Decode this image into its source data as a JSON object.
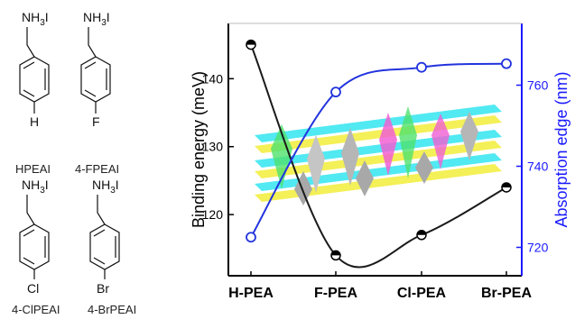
{
  "molecules": [
    {
      "top": "NH",
      "sub": "3",
      "tail": "I",
      "substituent": "H",
      "name": "HPEAI"
    },
    {
      "top": "NH",
      "sub": "3",
      "tail": "I",
      "substituent": "F",
      "name": "4-FPEAI"
    },
    {
      "top": "NH",
      "sub": "3",
      "tail": "I",
      "substituent": "Cl",
      "name": "4-ClPEAI"
    },
    {
      "top": "NH",
      "sub": "3",
      "tail": "I",
      "substituent": "Br",
      "name": "4-BrPEAI"
    }
  ],
  "chart_data": {
    "type": "line",
    "categories": [
      "H-PEA",
      "F-PEA",
      "Cl-PEA",
      "Br-PEA"
    ],
    "series": [
      {
        "axis": "left",
        "color": "#1a1a1a",
        "values": [
          145,
          114,
          117,
          124
        ]
      },
      {
        "axis": "right",
        "color": "#2233dd",
        "values": [
          722.5,
          758.3,
          764.4,
          765.3
        ]
      }
    ],
    "ylabel_left": "Binding energy (meV)",
    "ylabel_right": "Absorption edge (nm)",
    "ylim_left": [
      111,
      148
    ],
    "ylim_right": [
      713,
      775
    ],
    "yticks_left": [
      120,
      130,
      140
    ],
    "yticks_right": [
      720,
      740,
      760
    ],
    "grid": false
  }
}
